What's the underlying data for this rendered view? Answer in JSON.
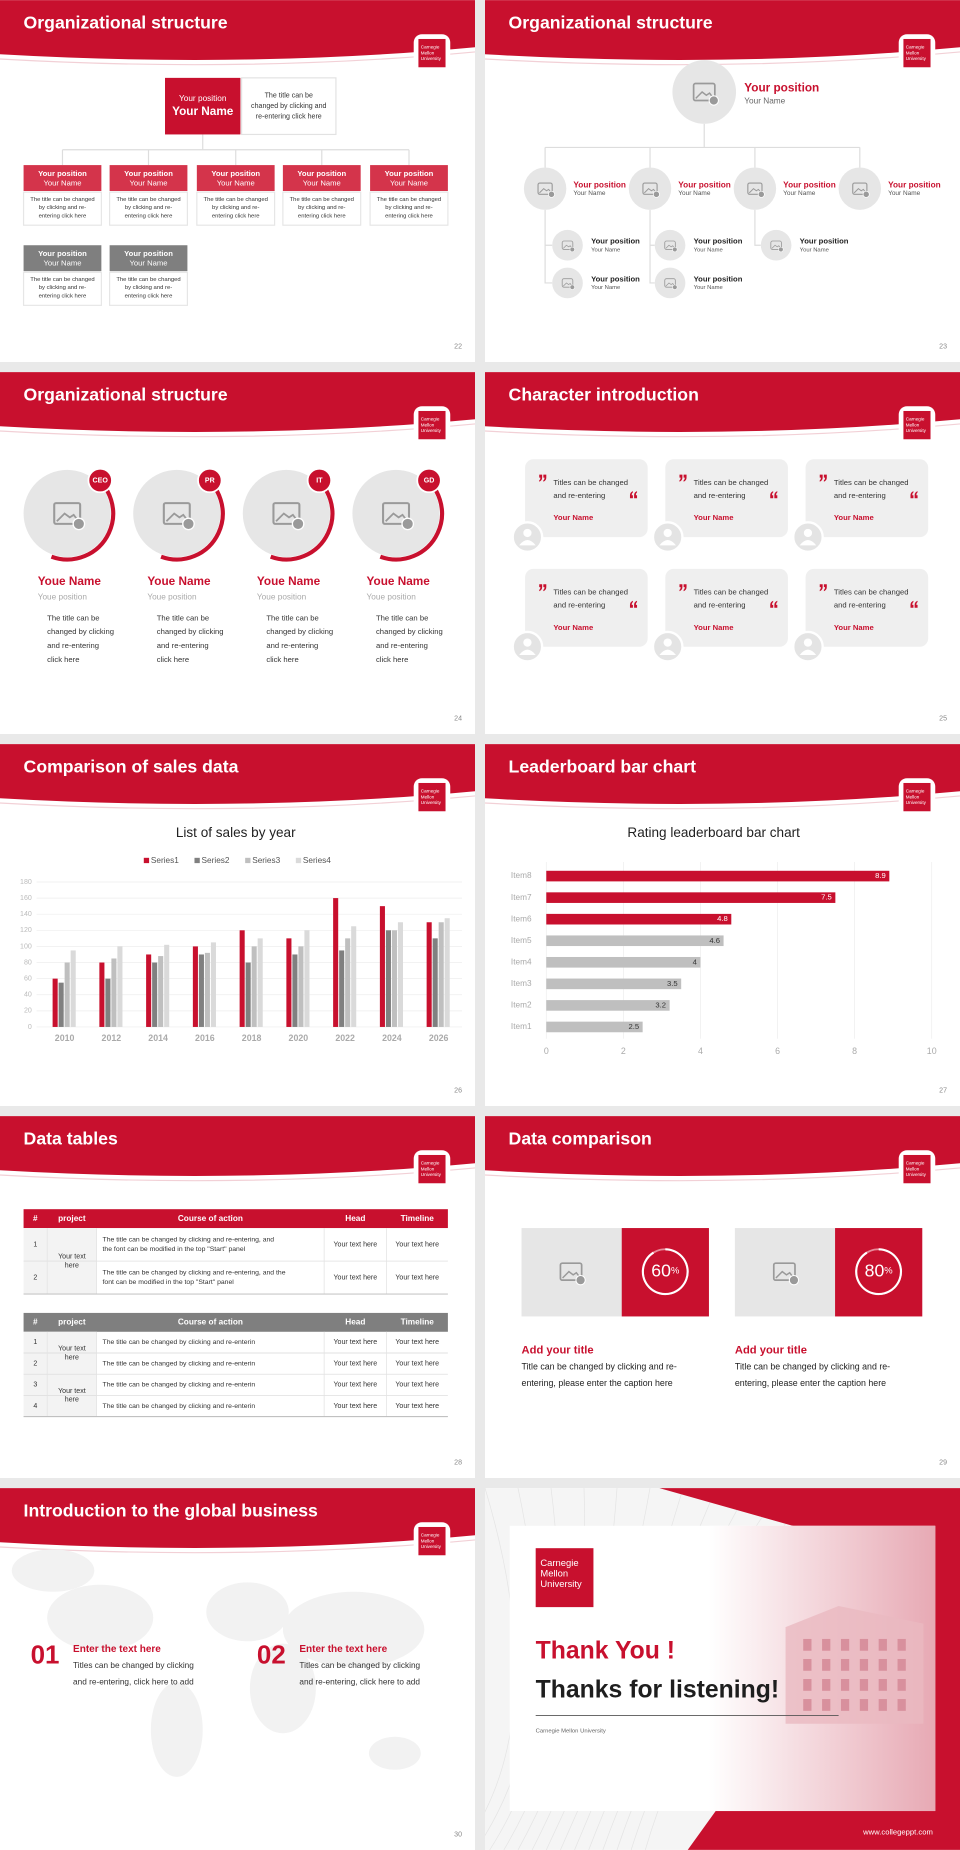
{
  "logo": [
    "Carnegie",
    "Mellon",
    "University"
  ],
  "slides": [
    {
      "title": "Organizational structure",
      "page": "22",
      "top": {
        "position": "Your position",
        "name": "Your Name",
        "text": [
          "The title can be",
          "changed by clicking and",
          "re-entering click here"
        ]
      },
      "boxes": [
        {
          "position": "Your position",
          "name": "Your Name",
          "text": [
            "The title can be changed",
            "by clicking and re-",
            "entering click here"
          ]
        },
        {
          "position": "Your position",
          "name": "Your Name",
          "text": [
            "The title can be changed",
            "by clicking and re-",
            "entering click here"
          ]
        },
        {
          "position": "Your position",
          "name": "Your Name",
          "text": [
            "The title can be changed",
            "by clicking and re-",
            "entering click here"
          ]
        },
        {
          "position": "Your position",
          "name": "Your Name",
          "text": [
            "The title can be changed",
            "by clicking and re-",
            "entering click here"
          ]
        },
        {
          "position": "Your position",
          "name": "Your Name",
          "text": [
            "The title can be changed",
            "by clicking and re-",
            "entering click here"
          ]
        },
        {
          "position": "Your position",
          "name": "Your Name",
          "text": [
            "The title can be changed",
            "by clicking and re-",
            "entering click here"
          ]
        },
        {
          "position": "Your position",
          "name": "Your Name",
          "text": [
            "The title can be changed",
            "by clicking and re-",
            "entering click here"
          ]
        }
      ]
    },
    {
      "title": "Organizational structure",
      "page": "23",
      "top": {
        "position": "Your position",
        "name": "Your Name"
      },
      "level2": [
        {
          "position": "Your position",
          "name": "Your Name"
        },
        {
          "position": "Your position",
          "name": "Your Name"
        },
        {
          "position": "Your position",
          "name": "Your Name"
        },
        {
          "position": "Your position",
          "name": "Your Name"
        }
      ],
      "level3": [
        {
          "position": "Your position",
          "name": "Your Name"
        },
        {
          "position": "Your position",
          "name": "Your Name"
        },
        {
          "position": "Your position",
          "name": "Your Name"
        },
        {
          "position": "Your position",
          "name": "Your Name"
        },
        {
          "position": "Your position",
          "name": "Your Name"
        }
      ]
    },
    {
      "title": "Organizational structure",
      "page": "24",
      "members": [
        {
          "tag": "CEO",
          "name": "Youe Name",
          "position": "Youe position",
          "text": [
            "The title can be",
            "changed by clicking",
            "and re-entering",
            "click here"
          ]
        },
        {
          "tag": "PR",
          "name": "Youe Name",
          "position": "Youe position",
          "text": [
            "The title can be",
            "changed by clicking",
            "and re-entering",
            "click here"
          ]
        },
        {
          "tag": "IT",
          "name": "Youe Name",
          "position": "Youe position",
          "text": [
            "The title can be",
            "changed by clicking",
            "and re-entering",
            "click here"
          ]
        },
        {
          "tag": "GD",
          "name": "Youe Name",
          "position": "Youe position",
          "text": [
            "The title can be",
            "changed by clicking",
            "and re-entering",
            "click here"
          ]
        }
      ]
    },
    {
      "title": "Character introduction",
      "page": "25",
      "cards": [
        {
          "text": [
            "Titles can be changed",
            "and re-entering"
          ],
          "name": "Your Name"
        },
        {
          "text": [
            "Titles can be changed",
            "and re-entering"
          ],
          "name": "Your Name"
        },
        {
          "text": [
            "Titles can be changed",
            "and re-entering"
          ],
          "name": "Your Name"
        },
        {
          "text": [
            "Titles can be changed",
            "and re-entering"
          ],
          "name": "Your Name"
        },
        {
          "text": [
            "Titles can be changed",
            "and re-entering"
          ],
          "name": "Your Name"
        },
        {
          "text": [
            "Titles can be changed",
            "and re-entering"
          ],
          "name": "Your Name"
        }
      ]
    },
    {
      "title": "Comparison of sales data",
      "page": "26"
    },
    {
      "title": "Leaderboard bar chart",
      "page": "27"
    },
    {
      "title": "Data tables",
      "page": "28",
      "tables": [
        {
          "header": [
            "#",
            "project",
            "Course of action",
            "Head",
            "Timeline"
          ],
          "project": [
            [
              "Your text",
              "here"
            ]
          ],
          "rows": [
            {
              "no": "1",
              "action": [
                "The title can be changed by clicking and re-entering, and",
                "the font can be modified in the top \"Start\" panel"
              ],
              "head": "Your text here",
              "timeline": "Your text here"
            },
            {
              "no": "2",
              "action": [
                "The title can be changed by clicking and re-entering, and the",
                "font can be modified in the top \"Start\" panel"
              ],
              "head": "Your text here",
              "timeline": "Your text here"
            }
          ]
        },
        {
          "header": [
            "#",
            "project",
            "Course of action",
            "Head",
            "Timeline"
          ],
          "project": [
            [
              "Your text",
              "here"
            ],
            [
              "Your text",
              "here"
            ]
          ],
          "rows": [
            {
              "no": "1",
              "action": [
                "The title can be changed by clicking and re-enterin"
              ],
              "head": "Your text here",
              "timeline": "Your text here"
            },
            {
              "no": "2",
              "action": [
                "The title can be changed by clicking and re-enterin"
              ],
              "head": "Your text here",
              "timeline": "Your text here"
            },
            {
              "no": "3",
              "action": [
                "The title can be changed by clicking and re-enterin"
              ],
              "head": "Your text here",
              "timeline": "Your text here"
            },
            {
              "no": "4",
              "action": [
                "The title can be changed by clicking and re-enterin"
              ],
              "head": "Your text here",
              "timeline": "Your text here"
            }
          ]
        }
      ]
    },
    {
      "title": "Data comparison",
      "page": "29",
      "panels": [
        {
          "percent": "60",
          "unit": "%",
          "title": "Add your title",
          "text": [
            "Title can be changed by clicking and re-",
            "entering, please enter the caption here"
          ]
        },
        {
          "percent": "80",
          "unit": "%",
          "title": "Add your title",
          "text": [
            "Title can be changed by clicking and re-",
            "entering, please enter the caption here"
          ]
        }
      ]
    },
    {
      "title": "Introduction to the global business",
      "page": "30",
      "items": [
        {
          "num": "01",
          "title": "Enter the text here",
          "text": [
            "Titles can be changed by clicking",
            "and re-entering, click here to add"
          ]
        },
        {
          "num": "02",
          "title": "Enter the text here",
          "text": [
            "Titles can be changed by clicking",
            "and re-entering, click here to add"
          ]
        }
      ]
    },
    {
      "thanks": "Thank You !",
      "subtitle": "Thanks for listening!",
      "org": "Carnegie Mellon University",
      "url": "www.collegeppt.com"
    }
  ],
  "chart_data": [
    {
      "type": "bar",
      "title": "List of sales by year",
      "categories": [
        "2010",
        "2012",
        "2014",
        "2016",
        "2018",
        "2020",
        "2022",
        "2024",
        "2026"
      ],
      "series": [
        {
          "name": "Series1",
          "color": "#c8102e",
          "values": [
            60,
            80,
            90,
            100,
            120,
            110,
            160,
            150,
            130
          ]
        },
        {
          "name": "Series2",
          "color": "#808080",
          "values": [
            55,
            60,
            80,
            90,
            80,
            90,
            95,
            120,
            110
          ]
        },
        {
          "name": "Series3",
          "color": "#bfbfbf",
          "values": [
            80,
            85,
            88,
            92,
            100,
            100,
            110,
            120,
            130
          ]
        },
        {
          "name": "Series4",
          "color": "#dadada",
          "values": [
            95,
            100,
            102,
            105,
            110,
            120,
            125,
            130,
            135
          ]
        }
      ],
      "ylim": [
        0,
        180
      ],
      "yticks": [
        0,
        20,
        40,
        60,
        80,
        100,
        120,
        140,
        160,
        180
      ],
      "grid": true
    },
    {
      "type": "barh",
      "title": "Rating leaderboard bar chart",
      "categories": [
        "Item1",
        "Item2",
        "Item3",
        "Item4",
        "Item5",
        "Item6",
        "Item7",
        "Item8"
      ],
      "values": [
        2.5,
        3.2,
        3.5,
        4,
        4.6,
        4.8,
        7.5,
        8.9
      ],
      "colors": [
        "#bfbfbf",
        "#bfbfbf",
        "#bfbfbf",
        "#bfbfbf",
        "#bfbfbf",
        "#c8102e",
        "#c8102e",
        "#c8102e"
      ],
      "xlim": [
        0,
        10
      ],
      "xticks": [
        0,
        2,
        4,
        6,
        8,
        10
      ],
      "grid": true
    }
  ]
}
